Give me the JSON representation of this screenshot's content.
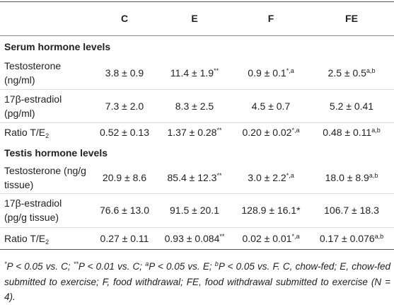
{
  "table": {
    "columns": [
      "C",
      "E",
      "F",
      "FE"
    ],
    "sections": [
      {
        "title": "Serum hormone levels",
        "rows": [
          {
            "label": [
              "Testosterone",
              "(ng/ml)"
            ],
            "cells": [
              {
                "text": "3.8 ± 0.9"
              },
              {
                "text": "11.4 ± 1.9",
                "sup": "**"
              },
              {
                "text": "0.9 ± 0.1",
                "sup": "*,a"
              },
              {
                "text": "2.5 ± 0.5",
                "sup": "a,b"
              }
            ]
          },
          {
            "label": [
              "17β-estradiol",
              "(pg/ml)"
            ],
            "cells": [
              {
                "text": "7.3 ± 2.0"
              },
              {
                "text": "8.3 ± 2.5"
              },
              {
                "text": "4.5 ± 0.7"
              },
              {
                "text": "5.2 ± 0.41"
              }
            ]
          },
          {
            "label": [
              "Ratio T/E"
            ],
            "label_sub": "2",
            "cells": [
              {
                "text": "0.52 ± 0.13"
              },
              {
                "text": "1.37 ± 0.28",
                "sup": "**"
              },
              {
                "text": "0.20 ± 0.02",
                "sup": "*,a"
              },
              {
                "text": "0.48 ± 0.11",
                "sup": "a,b"
              }
            ]
          }
        ]
      },
      {
        "title": "Testis hormone levels",
        "rows": [
          {
            "label": [
              "Testosterone (ng/g",
              "tissue)"
            ],
            "cells": [
              {
                "text": "20.9 ± 8.6"
              },
              {
                "text": "85.4 ± 12.3",
                "sup": "**"
              },
              {
                "text": "3.0 ± 2.2",
                "sup": "*,a"
              },
              {
                "text": "18.0 ± 8.9",
                "sup": "a,b"
              }
            ]
          },
          {
            "label": [
              "17β-estradiol",
              "(pg/g tissue)"
            ],
            "cells": [
              {
                "text": "76.6 ± 13.0"
              },
              {
                "text": "91.5 ± 20.1"
              },
              {
                "text": "128.9 ± 16.1*"
              },
              {
                "text": "106.7 ± 18.3"
              }
            ]
          },
          {
            "label": [
              "Ratio T/E"
            ],
            "label_sub": "2",
            "cells": [
              {
                "text": "0.27 ± 0.11"
              },
              {
                "text": "0.93 ± 0.084",
                "sup": "**"
              },
              {
                "text": "0.02 ± 0.01",
                "sup": "*,a"
              },
              {
                "text": "0.17 ± 0.076",
                "sup": "a,b"
              }
            ]
          }
        ]
      }
    ]
  },
  "footnote": [
    {
      "sup": "*",
      "text": "P < 0.05 vs. C; "
    },
    {
      "sup": "**",
      "text": "P < 0.01 vs. C; "
    },
    {
      "sup": "a",
      "text": "P < 0.05 vs. E; "
    },
    {
      "sup": "b",
      "text": "P < 0.05 vs. F. C, chow-fed; E, chow-fed submitted to exercise; F, food withdrawal; FE, food withdrawal submitted to exercise (N = 4)."
    }
  ]
}
